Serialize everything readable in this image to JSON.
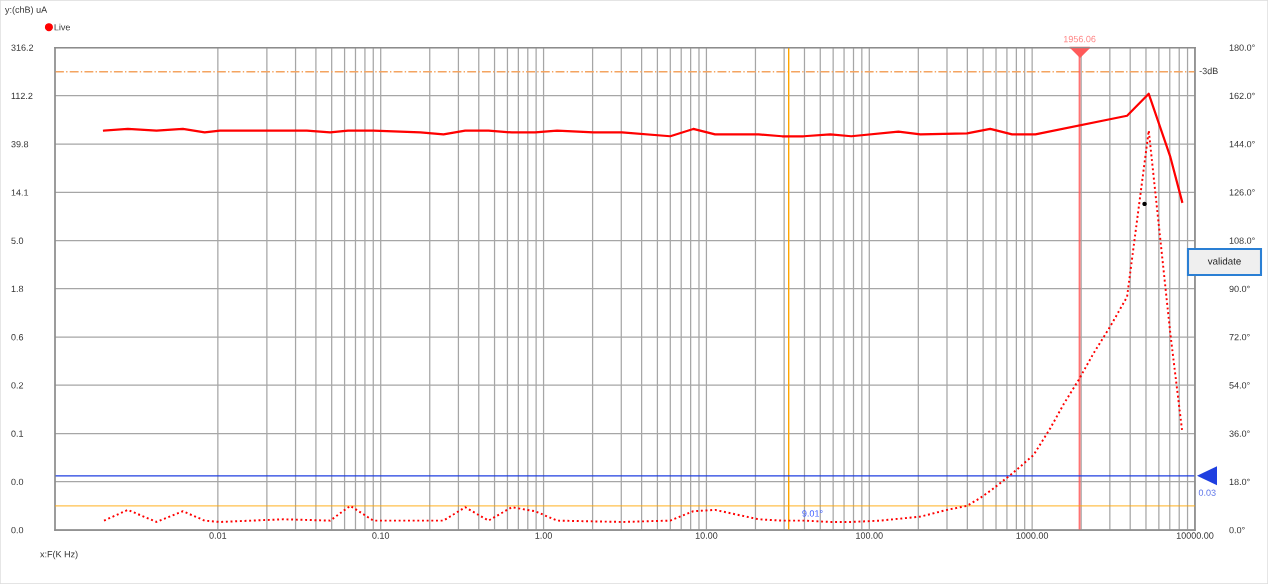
{
  "chart_data": {
    "type": "line",
    "xlabel": "x:F(K Hz)",
    "ylabel": "y:(chB) uA",
    "log": "xy",
    "grid": true,
    "legend": "top left",
    "xlim": [
      0.001,
      10000
    ],
    "xticks": [
      0.01,
      {
        "value": 0.02,
        "label": null
      },
      {
        "value": 0.03,
        "label": null
      },
      {
        "value": 0.04,
        "label": null
      },
      {
        "value": 0.05,
        "label": null
      },
      {
        "value": 0.06,
        "label": null
      },
      {
        "value": 0.07,
        "label": null
      },
      {
        "value": 0.08,
        "label": null
      },
      {
        "value": 0.09,
        "label": null
      },
      {
        "value": 0.1,
        "label": "0.10"
      },
      {
        "value": 0.2,
        "label": null
      },
      {
        "value": 0.3,
        "label": null
      },
      {
        "value": 0.4,
        "label": null
      },
      {
        "value": 0.5,
        "label": null
      },
      {
        "value": 0.6,
        "label": null
      },
      {
        "value": 0.7,
        "label": null
      },
      {
        "value": 0.8,
        "label": null
      },
      {
        "value": 0.9,
        "label": null
      },
      {
        "value": 1,
        "label": "1.00"
      },
      {
        "value": 2,
        "label": null
      },
      {
        "value": 3,
        "label": null
      },
      {
        "value": 4,
        "label": null
      },
      {
        "value": 5,
        "label": null
      },
      {
        "value": 6,
        "label": null
      },
      {
        "value": 7,
        "label": null
      },
      {
        "value": 8,
        "label": null
      },
      {
        "value": 9,
        "label": null
      },
      {
        "value": 10,
        "label": "10.00"
      },
      {
        "value": 20,
        "label": null
      },
      {
        "value": 30,
        "label": null
      },
      {
        "value": 40,
        "label": null
      },
      {
        "value": 50,
        "label": null
      },
      {
        "value": 60,
        "label": null
      },
      {
        "value": 70,
        "label": null
      },
      {
        "value": 80,
        "label": null
      },
      {
        "value": 90,
        "label": null
      },
      {
        "value": 100,
        "label": "100.00"
      },
      {
        "value": 200,
        "label": null
      },
      {
        "value": 300,
        "label": null
      },
      {
        "value": 400,
        "label": null
      },
      {
        "value": 500,
        "label": null
      },
      {
        "value": 600,
        "label": null
      },
      {
        "value": 700,
        "label": null
      },
      {
        "value": 800,
        "label": null
      },
      {
        "value": 900,
        "label": null
      },
      {
        "value": 1000,
        "label": "1000.00"
      },
      {
        "value": 2000,
        "label": null
      },
      {
        "value": 3000,
        "label": null
      },
      {
        "value": 4000,
        "label": null
      },
      {
        "value": 5000,
        "label": null
      },
      {
        "value": 6000,
        "label": null
      },
      {
        "value": 7000,
        "label": null
      },
      {
        "value": 8000,
        "label": null
      },
      {
        "value": 9000,
        "label": null
      },
      {
        "value": 10000,
        "label": "10000.00"
      }
    ],
    "ylim": [
      0.01,
      316.2
    ],
    "yticks": [
      316.2,
      112.2,
      39.8,
      14.1,
      {
        "value": 5.0,
        "label": "5.0"
      },
      {
        "value": 1.78,
        "label": "1.8"
      },
      {
        "value": 0.63,
        "label": "0.6"
      },
      {
        "value": 0.224,
        "label": "0.2"
      },
      {
        "value": 0.0794,
        "label": "0.1"
      },
      {
        "value": 0.0282,
        "label": "0.0"
      },
      {
        "value": 0.01,
        "label": "0.0"
      }
    ],
    "y2lim": [
      0,
      180
    ],
    "y2ticks": [
      {
        "value": 0,
        "label": "0.0°"
      },
      {
        "value": 18,
        "label": "18.0°"
      },
      {
        "value": 36,
        "label": "36.0°"
      },
      {
        "value": 54,
        "label": "54.0°"
      },
      {
        "value": 72,
        "label": "72.0°"
      },
      {
        "value": 90,
        "label": "90.0°"
      },
      {
        "value": 108,
        "label": "108.0°"
      },
      {
        "value": 126,
        "label": "126.0°"
      },
      {
        "value": 144,
        "label": "144.0°"
      },
      {
        "value": 162,
        "label": "162.0°"
      },
      {
        "value": 180,
        "label": "180.0°"
      }
    ],
    "series": [
      {
        "name": "Live",
        "color": "#ff0000",
        "line_style": "solid",
        "x": [
          0.002,
          0.0028,
          0.0042,
          0.0061,
          0.0083,
          0.0103,
          0.0352,
          0.0489,
          0.063,
          0.0901,
          0.175,
          0.243,
          0.33,
          0.459,
          0.638,
          0.887,
          1.21,
          2.03,
          3.03,
          6.0,
          8.3,
          11.3,
          20.9,
          29.1,
          39.5,
          57.6,
          77.5,
          151,
          206,
          398,
          553,
          753,
          1047,
          3828,
          5200,
          7063,
          8337
        ],
        "values": [
          53,
          55,
          53,
          55,
          51,
          53,
          53,
          51,
          53,
          53,
          51,
          49,
          53,
          53,
          51,
          51,
          53,
          51,
          51,
          47,
          55,
          49,
          49,
          47,
          47,
          49,
          47,
          52,
          49,
          50,
          55,
          49,
          49,
          73,
          117,
          30,
          11.5
        ]
      },
      {
        "color": "#ff0000",
        "line_style": "dotted",
        "axis": "y2",
        "x": [
          0.002,
          0.0028,
          0.0042,
          0.0061,
          0.0083,
          0.0103,
          0.0253,
          0.0489,
          0.065,
          0.0901,
          0.175,
          0.243,
          0.33,
          0.459,
          0.638,
          0.887,
          1.21,
          3.03,
          6.0,
          8.3,
          11.3,
          20.9,
          29.1,
          39.5,
          57.6,
          77.5,
          117,
          206,
          300,
          398,
          481,
          565,
          753,
          1021,
          1294,
          1563,
          1930,
          2387,
          3022,
          3828,
          5200,
          7063,
          8337
        ],
        "values": [
          3.5,
          7.5,
          3,
          7,
          3.5,
          3,
          4,
          3.5,
          9,
          3.5,
          3.5,
          3.5,
          8.5,
          3.5,
          8.5,
          7,
          3.5,
          3,
          3.5,
          7,
          7.5,
          4,
          3.5,
          3.5,
          3,
          3,
          3.5,
          5,
          7.5,
          9,
          12,
          15,
          21,
          28,
          38,
          47,
          56,
          66,
          76,
          87,
          149,
          73,
          37
        ]
      },
      {
        "type": "scatter",
        "color": "#000000",
        "x": [
          4900
        ],
        "values": [
          11
        ]
      }
    ],
    "ref_lines": [
      {
        "axis": "y",
        "value": 188,
        "label": "-3dB",
        "color": "#f4a460",
        "line_style": "dashdot"
      },
      {
        "axis": "x",
        "value": 1956.06,
        "label": "1956.06",
        "color": "#ff5a5a"
      },
      {
        "axis": "x",
        "value": 32,
        "color": "#ffa500"
      },
      {
        "axis": "y2",
        "value": 9.01,
        "label": "9.01°",
        "color": "#ffa500"
      },
      {
        "axis": "y",
        "value": 0.032,
        "label": "0.03",
        "color": "#1f3fe0"
      }
    ],
    "annotations": [
      "validate"
    ]
  }
}
